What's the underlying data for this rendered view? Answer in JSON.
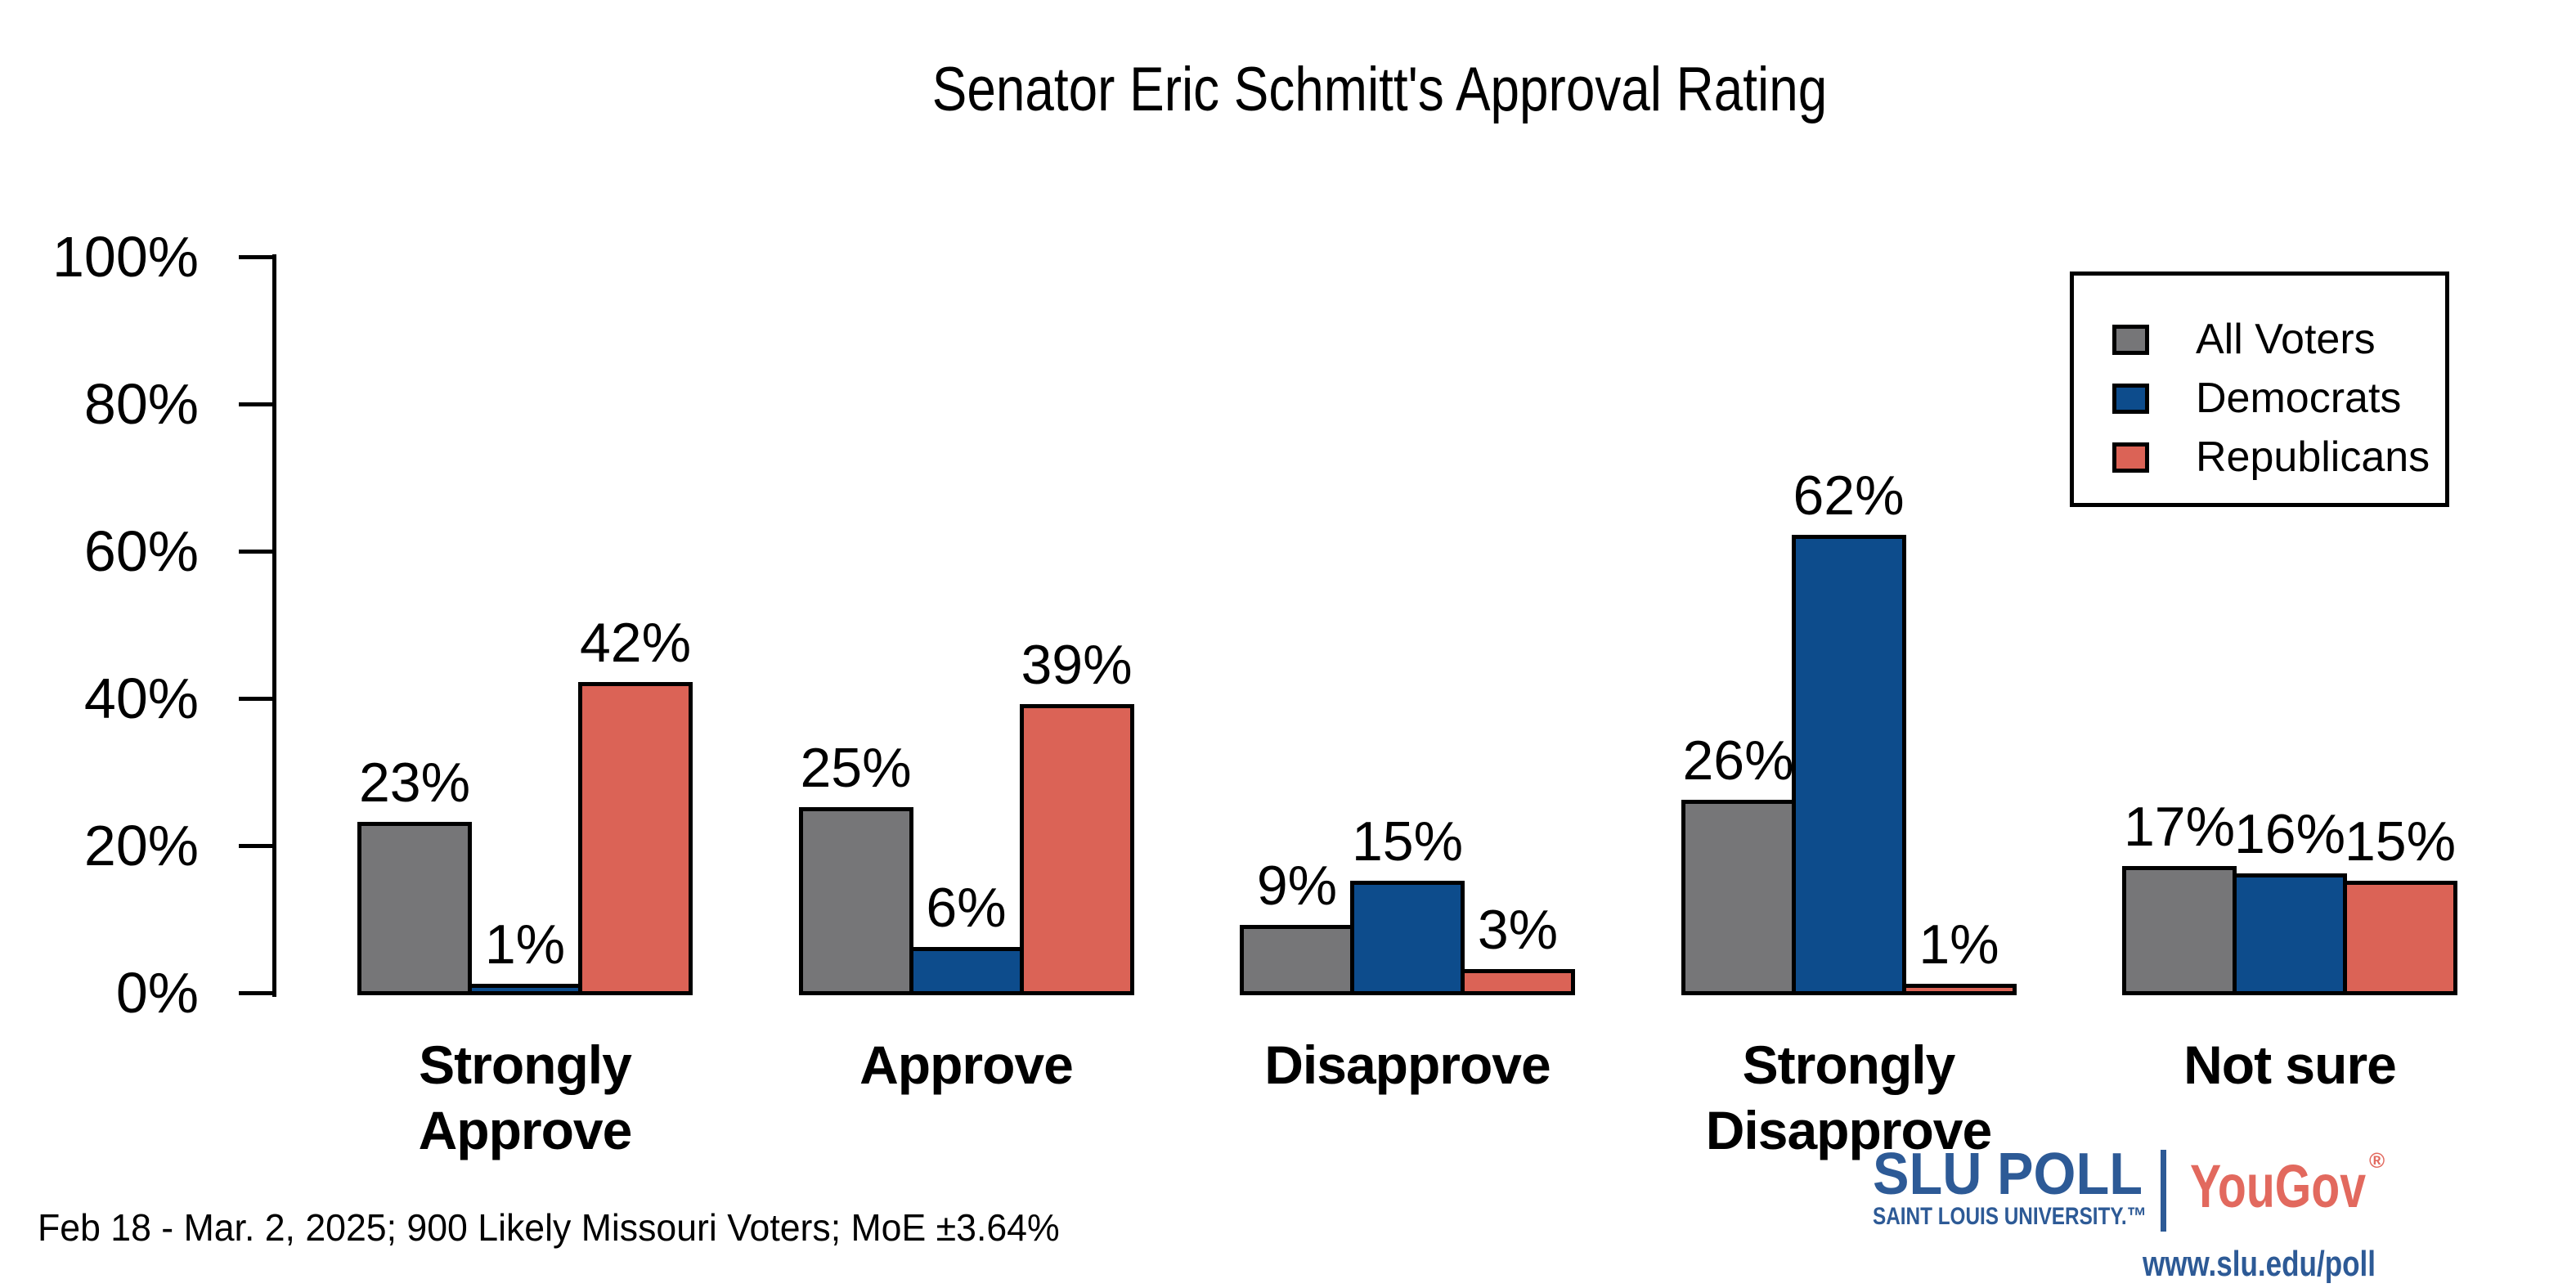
{
  "chart_data": {
    "type": "bar",
    "title": "Senator Eric Schmitt's Approval Rating",
    "categories": [
      "Strongly Approve",
      "Approve",
      "Disapprove",
      "Strongly Disapprove",
      "Not sure"
    ],
    "category_lines": [
      [
        "Strongly",
        "Approve"
      ],
      [
        "Approve"
      ],
      [
        "Disapprove"
      ],
      [
        "Strongly",
        "Disapprove"
      ],
      [
        "Not sure"
      ]
    ],
    "series": [
      {
        "name": "All Voters",
        "color": "#767678",
        "values": [
          23,
          25,
          9,
          26,
          17
        ]
      },
      {
        "name": "Democrats",
        "color": "#0d4c8c",
        "values": [
          1,
          6,
          15,
          62,
          16
        ]
      },
      {
        "name": "Republicans",
        "color": "#db6356",
        "values": [
          42,
          39,
          3,
          1,
          15
        ]
      }
    ],
    "value_suffix": "%",
    "ylim": [
      0,
      100
    ],
    "yticks": [
      "0%",
      "20%",
      "40%",
      "60%",
      "80%",
      "100%"
    ],
    "ytick_values": [
      0,
      20,
      40,
      60,
      80,
      100
    ],
    "bar_outline": "#000000",
    "grid": false,
    "legend_position": "top-right"
  },
  "footer": {
    "note": "Feb 18 - Mar. 2, 2025; 900 Likely Missouri Voters; MoE ±3.64%"
  },
  "branding": {
    "slu_poll": "SLU POLL",
    "slu_subtitle": "SAINT LOUIS UNIVERSITY.™",
    "partner": "YouGov",
    "registered": "®",
    "url": "www.slu.edu/poll",
    "slu_color": "#2d5a96",
    "partner_color": "#e2695e"
  }
}
